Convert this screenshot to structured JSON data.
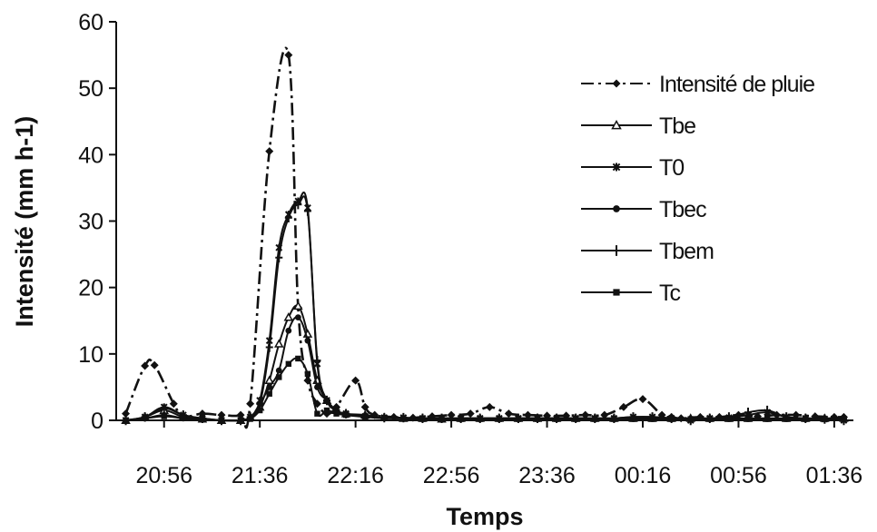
{
  "chart_data": {
    "type": "line",
    "xlabel": "Temps",
    "ylabel": "Intensité (mm h-1)",
    "ylim": [
      0,
      60
    ],
    "yticks": [
      0,
      10,
      20,
      30,
      40,
      50,
      60
    ],
    "x_tick_labels": [
      "20:56",
      "21:36",
      "22:16",
      "22:56",
      "23:36",
      "00:16",
      "00:56",
      "01:36"
    ],
    "x_tick_minutes": [
      1256,
      1296,
      1336,
      1376,
      1416,
      1456,
      1496,
      1536
    ],
    "xlim_minutes": [
      1236,
      1544
    ],
    "grid": false,
    "legend_position": "right",
    "series": [
      {
        "name": "Intensité de pluie",
        "marker": "diamond",
        "dash": "dashdot",
        "x": [
          1240,
          1248,
          1252,
          1260,
          1264,
          1272,
          1280,
          1288,
          1292,
          1300,
          1308,
          1312,
          1316,
          1320,
          1324,
          1328,
          1336,
          1340,
          1344,
          1352,
          1360,
          1368,
          1376,
          1384,
          1392,
          1400,
          1408,
          1416,
          1424,
          1432,
          1440,
          1448,
          1456,
          1464,
          1468,
          1472,
          1480,
          1488,
          1496,
          1504,
          1512,
          1520,
          1528,
          1536,
          1540
        ],
        "y": [
          1.0,
          8.2,
          8.3,
          2.5,
          0.6,
          1.0,
          0.8,
          0.8,
          2.5,
          40.5,
          55.0,
          17.0,
          6.0,
          2.5,
          1.0,
          2.0,
          6.0,
          2.0,
          0.8,
          0.5,
          0.4,
          0.6,
          0.8,
          1.0,
          2.0,
          1.0,
          0.8,
          0.7,
          0.7,
          0.8,
          0.8,
          2.0,
          3.2,
          0.8,
          0.5,
          0.3,
          0.5,
          0.5,
          0.8,
          0.6,
          0.8,
          0.8,
          0.6,
          0.5,
          0.5
        ]
      },
      {
        "name": "Tbe",
        "marker": "triangle",
        "x": [
          1240,
          1248,
          1256,
          1264,
          1272,
          1280,
          1288,
          1292,
          1296,
          1300,
          1304,
          1308,
          1312,
          1316,
          1320,
          1324,
          1328,
          1332,
          1340,
          1348,
          1356,
          1364,
          1372,
          1380,
          1388,
          1396,
          1404,
          1412,
          1420,
          1428,
          1436,
          1444,
          1452,
          1460,
          1468,
          1476,
          1484,
          1492,
          1500,
          1508,
          1516,
          1524,
          1532,
          1540
        ],
        "y": [
          0,
          0.5,
          1.5,
          0.5,
          0.2,
          0,
          0,
          0.5,
          2.0,
          6.0,
          11.5,
          15.5,
          17.2,
          13.0,
          6.0,
          3.0,
          1.5,
          1.0,
          0.8,
          0.4,
          0.3,
          0.3,
          0.2,
          0.3,
          0.3,
          0.3,
          0.3,
          0.3,
          0.3,
          0.3,
          0.3,
          0.3,
          0.3,
          0.3,
          0.3,
          0.3,
          0.3,
          0.3,
          0.3,
          0.3,
          0.3,
          0.3,
          0.3,
          0.3
        ]
      },
      {
        "name": "T0",
        "marker": "asterisk",
        "x": [
          1240,
          1248,
          1256,
          1264,
          1272,
          1280,
          1288,
          1292,
          1296,
          1300,
          1304,
          1308,
          1312,
          1316,
          1320,
          1324,
          1328,
          1332,
          1340,
          1348,
          1356,
          1364,
          1372,
          1380,
          1388,
          1396,
          1404,
          1412,
          1420,
          1428,
          1436,
          1444,
          1452,
          1460,
          1468,
          1476,
          1484,
          1492,
          1500,
          1508,
          1516,
          1524,
          1532,
          1540
        ],
        "y": [
          0,
          0.5,
          2.0,
          0.8,
          0.3,
          0,
          0,
          0.5,
          3.0,
          12.0,
          26.0,
          31.0,
          33.0,
          32.0,
          8.5,
          3.0,
          1.5,
          1.0,
          0.6,
          0.4,
          0.4,
          0.3,
          0.3,
          0.3,
          0.3,
          0.3,
          0.3,
          0.3,
          0.3,
          0.3,
          0.3,
          0.3,
          0.5,
          0.5,
          0.3,
          0.0,
          0.3,
          0.4,
          0.8,
          1.2,
          0.5,
          0.3,
          0.2,
          0.0
        ]
      },
      {
        "name": "Tbec",
        "marker": "circle",
        "x": [
          1240,
          1248,
          1256,
          1264,
          1272,
          1280,
          1288,
          1292,
          1296,
          1300,
          1304,
          1308,
          1312,
          1316,
          1320,
          1324,
          1328,
          1332,
          1340,
          1348,
          1356,
          1364,
          1372,
          1380,
          1388,
          1396,
          1404,
          1412,
          1420,
          1428,
          1436,
          1444,
          1452,
          1460,
          1468,
          1476,
          1484,
          1492,
          1500,
          1508,
          1516,
          1524,
          1532,
          1540
        ],
        "y": [
          0,
          0.3,
          0.8,
          0.3,
          0.1,
          0,
          0,
          0.3,
          2.5,
          5.0,
          7.5,
          13.5,
          15.5,
          12.0,
          5.0,
          3.0,
          1.5,
          1.0,
          0.6,
          0.4,
          0.3,
          0.3,
          0.2,
          0.2,
          0.2,
          0.2,
          0.2,
          0.2,
          0.2,
          0.2,
          0.2,
          0.2,
          0.2,
          0.2,
          0.2,
          0.2,
          0.2,
          0.2,
          0.2,
          0.2,
          0.2,
          0.2,
          0.2,
          0.2
        ]
      },
      {
        "name": "Tbem",
        "marker": "plus",
        "x": [
          1240,
          1248,
          1256,
          1264,
          1272,
          1280,
          1288,
          1292,
          1296,
          1300,
          1304,
          1308,
          1312,
          1316,
          1320,
          1324,
          1328,
          1332,
          1340,
          1348,
          1356,
          1364,
          1372,
          1380,
          1388,
          1396,
          1404,
          1412,
          1420,
          1428,
          1436,
          1444,
          1452,
          1460,
          1468,
          1476,
          1484,
          1492,
          1500,
          1508,
          1516,
          1524,
          1532,
          1540
        ],
        "y": [
          0,
          0.5,
          1.8,
          0.8,
          0.3,
          0,
          0,
          0.5,
          2.5,
          11.0,
          24.5,
          30.5,
          32.5,
          31.5,
          9.0,
          3.0,
          1.5,
          1.0,
          0.6,
          0.4,
          0.4,
          0.3,
          0.3,
          0.3,
          0.3,
          0.3,
          0.3,
          0.3,
          0.3,
          0.3,
          0.3,
          0.3,
          0.5,
          0.5,
          0.3,
          0.0,
          0.3,
          0.5,
          1.2,
          1.5,
          0.5,
          0.3,
          0.2,
          0.0
        ]
      },
      {
        "name": "Tc",
        "marker": "square",
        "x": [
          1240,
          1248,
          1256,
          1264,
          1272,
          1280,
          1288,
          1292,
          1296,
          1300,
          1304,
          1308,
          1312,
          1316,
          1320,
          1324,
          1328,
          1332,
          1340,
          1348,
          1356,
          1364,
          1372,
          1380,
          1388,
          1396,
          1404,
          1412,
          1420,
          1428,
          1436,
          1444,
          1452,
          1460,
          1468,
          1476,
          1484,
          1492,
          1500,
          1508,
          1516,
          1524,
          1532,
          1540
        ],
        "y": [
          0,
          0.3,
          0.6,
          0.3,
          0.1,
          0,
          0,
          0.2,
          1.5,
          4.0,
          6.5,
          8.5,
          9.3,
          7.0,
          1.0,
          1.5,
          1.0,
          0.8,
          0.5,
          0.3,
          0.3,
          0.2,
          0.2,
          0.2,
          0.2,
          0.2,
          0.2,
          0.2,
          0.2,
          0.2,
          0.2,
          0.2,
          0.2,
          0.2,
          0.2,
          0.2,
          0.2,
          0.2,
          0.2,
          0.2,
          0.2,
          0.2,
          0.2,
          0.2
        ]
      }
    ]
  }
}
